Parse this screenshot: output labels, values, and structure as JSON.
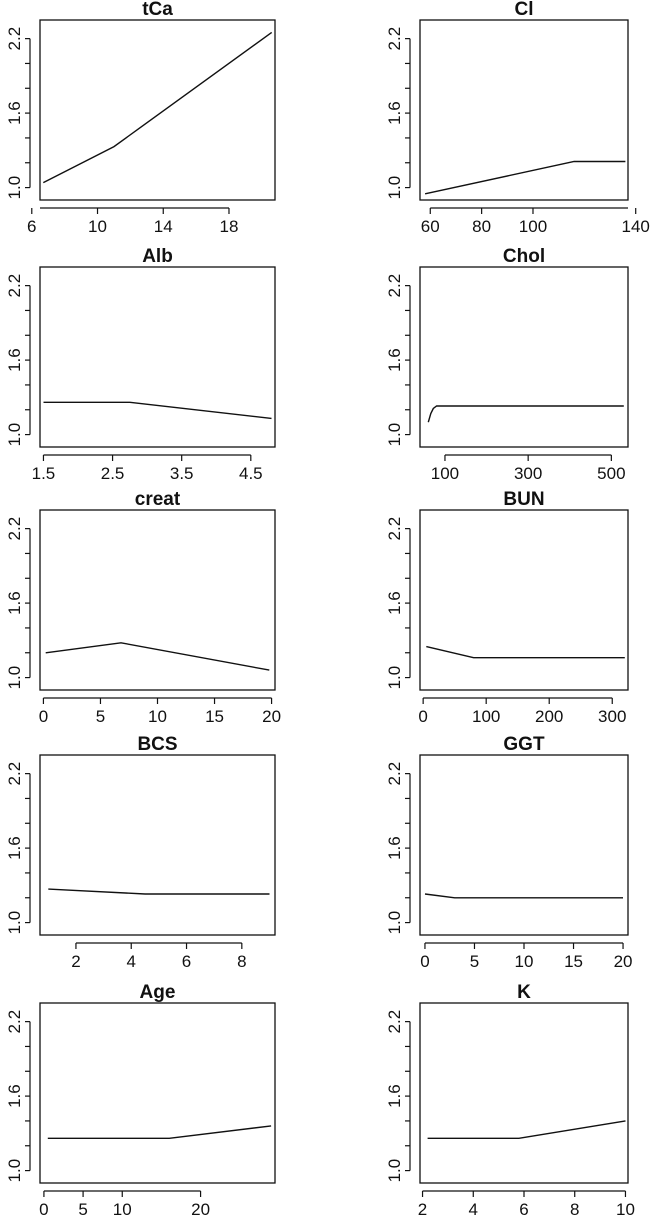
{
  "chart_data": [
    {
      "type": "line",
      "title": "tCa",
      "xlim": [
        6.5,
        20.8
      ],
      "ylim": [
        0.9,
        2.35
      ],
      "xticks": [
        {
          "value": 6,
          "label": "6"
        },
        {
          "value": 10,
          "label": "10"
        },
        {
          "value": 14,
          "label": "14"
        },
        {
          "value": 18,
          "label": "18"
        }
      ],
      "yticks": [
        {
          "value": 1.0,
          "label": "1.0"
        },
        {
          "value": 1.6,
          "label": "1.6"
        },
        {
          "value": 2.2,
          "label": "2.2"
        }
      ],
      "x": [
        6.7,
        11,
        20.6
      ],
      "y": [
        1.04,
        1.33,
        2.25
      ]
    },
    {
      "type": "line",
      "title": "Cl",
      "xlim": [
        56,
        137
      ],
      "ylim": [
        0.9,
        2.35
      ],
      "xticks": [
        {
          "value": 60,
          "label": "60"
        },
        {
          "value": 80,
          "label": "80"
        },
        {
          "value": 100,
          "label": "100"
        },
        {
          "value": 140,
          "label": "140"
        }
      ],
      "yticks": [
        {
          "value": 1.0,
          "label": "1.0"
        },
        {
          "value": 1.6,
          "label": "1.6"
        },
        {
          "value": 2.2,
          "label": "2.2"
        }
      ],
      "x": [
        58,
        116,
        136
      ],
      "y": [
        0.95,
        1.21,
        1.21
      ]
    },
    {
      "type": "line",
      "title": "Alb",
      "xlim": [
        1.45,
        4.85
      ],
      "ylim": [
        0.9,
        2.35
      ],
      "xticks": [
        {
          "value": 1.5,
          "label": "1.5"
        },
        {
          "value": 2.5,
          "label": "2.5"
        },
        {
          "value": 3.5,
          "label": "3.5"
        },
        {
          "value": 4.5,
          "label": "4.5"
        }
      ],
      "yticks": [
        {
          "value": 1.0,
          "label": "1.0"
        },
        {
          "value": 1.6,
          "label": "1.6"
        },
        {
          "value": 2.2,
          "label": "2.2"
        }
      ],
      "x": [
        1.5,
        2.75,
        4.8
      ],
      "y": [
        1.26,
        1.26,
        1.13
      ]
    },
    {
      "type": "line",
      "title": "Chol",
      "xlim": [
        40,
        540
      ],
      "ylim": [
        0.9,
        2.35
      ],
      "xticks": [
        {
          "value": 100,
          "label": "100"
        },
        {
          "value": 300,
          "label": "300"
        },
        {
          "value": 500,
          "label": "500"
        }
      ],
      "yticks": [
        {
          "value": 1.0,
          "label": "1.0"
        },
        {
          "value": 1.6,
          "label": "1.6"
        },
        {
          "value": 2.2,
          "label": "2.2"
        }
      ],
      "x": [
        60,
        66,
        72,
        80,
        90,
        530
      ],
      "y": [
        1.1,
        1.17,
        1.21,
        1.23,
        1.23,
        1.23
      ]
    },
    {
      "type": "line",
      "title": "creat",
      "xlim": [
        -0.3,
        20.3
      ],
      "ylim": [
        0.9,
        2.35
      ],
      "xticks": [
        {
          "value": 0,
          "label": "0"
        },
        {
          "value": 5,
          "label": "5"
        },
        {
          "value": 10,
          "label": "10"
        },
        {
          "value": 15,
          "label": "15"
        },
        {
          "value": 20,
          "label": "20"
        }
      ],
      "yticks": [
        {
          "value": 1.0,
          "label": "1.0"
        },
        {
          "value": 1.6,
          "label": "1.6"
        },
        {
          "value": 2.2,
          "label": "2.2"
        }
      ],
      "x": [
        0.2,
        6.8,
        19.8
      ],
      "y": [
        1.2,
        1.28,
        1.06
      ]
    },
    {
      "type": "line",
      "title": "BUN",
      "xlim": [
        -5,
        325
      ],
      "ylim": [
        0.9,
        2.35
      ],
      "xticks": [
        {
          "value": 0,
          "label": "0"
        },
        {
          "value": 100,
          "label": "100"
        },
        {
          "value": 200,
          "label": "200"
        },
        {
          "value": 300,
          "label": "300"
        }
      ],
      "yticks": [
        {
          "value": 1.0,
          "label": "1.0"
        },
        {
          "value": 1.6,
          "label": "1.6"
        },
        {
          "value": 2.2,
          "label": "2.2"
        }
      ],
      "x": [
        5,
        80,
        320
      ],
      "y": [
        1.25,
        1.16,
        1.16
      ]
    },
    {
      "type": "line",
      "title": "BCS",
      "xlim": [
        0.7,
        9.2
      ],
      "ylim": [
        0.9,
        2.35
      ],
      "xticks": [
        {
          "value": 2,
          "label": "2"
        },
        {
          "value": 4,
          "label": "4"
        },
        {
          "value": 6,
          "label": "6"
        },
        {
          "value": 8,
          "label": "8"
        }
      ],
      "yticks": [
        {
          "value": 1.0,
          "label": "1.0"
        },
        {
          "value": 1.6,
          "label": "1.6"
        },
        {
          "value": 2.2,
          "label": "2.2"
        }
      ],
      "x": [
        1,
        4.5,
        9
      ],
      "y": [
        1.27,
        1.23,
        1.23
      ]
    },
    {
      "type": "line",
      "title": "GGT",
      "xlim": [
        -0.5,
        20.5
      ],
      "ylim": [
        0.9,
        2.35
      ],
      "xticks": [
        {
          "value": 0,
          "label": "0"
        },
        {
          "value": 5,
          "label": "5"
        },
        {
          "value": 10,
          "label": "10"
        },
        {
          "value": 15,
          "label": "15"
        },
        {
          "value": 20,
          "label": "20"
        }
      ],
      "yticks": [
        {
          "value": 1.0,
          "label": "1.0"
        },
        {
          "value": 1.6,
          "label": "1.6"
        },
        {
          "value": 2.2,
          "label": "2.2"
        }
      ],
      "x": [
        0,
        3,
        20
      ],
      "y": [
        1.23,
        1.2,
        1.2
      ]
    },
    {
      "type": "line",
      "title": "Age",
      "xlim": [
        -0.5,
        29.5
      ],
      "ylim": [
        0.9,
        2.35
      ],
      "xticks": [
        {
          "value": 0,
          "label": "0"
        },
        {
          "value": 5,
          "label": "5"
        },
        {
          "value": 10,
          "label": "10"
        },
        {
          "value": 20,
          "label": "20"
        }
      ],
      "yticks": [
        {
          "value": 1.0,
          "label": "1.0"
        },
        {
          "value": 1.6,
          "label": "1.6"
        },
        {
          "value": 2.2,
          "label": "2.2"
        }
      ],
      "x": [
        0.5,
        16,
        29
      ],
      "y": [
        1.26,
        1.26,
        1.36
      ]
    },
    {
      "type": "line",
      "title": "K",
      "xlim": [
        1.9,
        10.1
      ],
      "ylim": [
        0.9,
        2.35
      ],
      "xticks": [
        {
          "value": 2,
          "label": "2"
        },
        {
          "value": 4,
          "label": "4"
        },
        {
          "value": 6,
          "label": "6"
        },
        {
          "value": 8,
          "label": "8"
        },
        {
          "value": 10,
          "label": "10"
        }
      ],
      "yticks": [
        {
          "value": 1.0,
          "label": "1.0"
        },
        {
          "value": 1.6,
          "label": "1.6"
        },
        {
          "value": 2.2,
          "label": "2.2"
        }
      ],
      "x": [
        2.2,
        5.8,
        10
      ],
      "y": [
        1.26,
        1.26,
        1.4
      ]
    }
  ]
}
